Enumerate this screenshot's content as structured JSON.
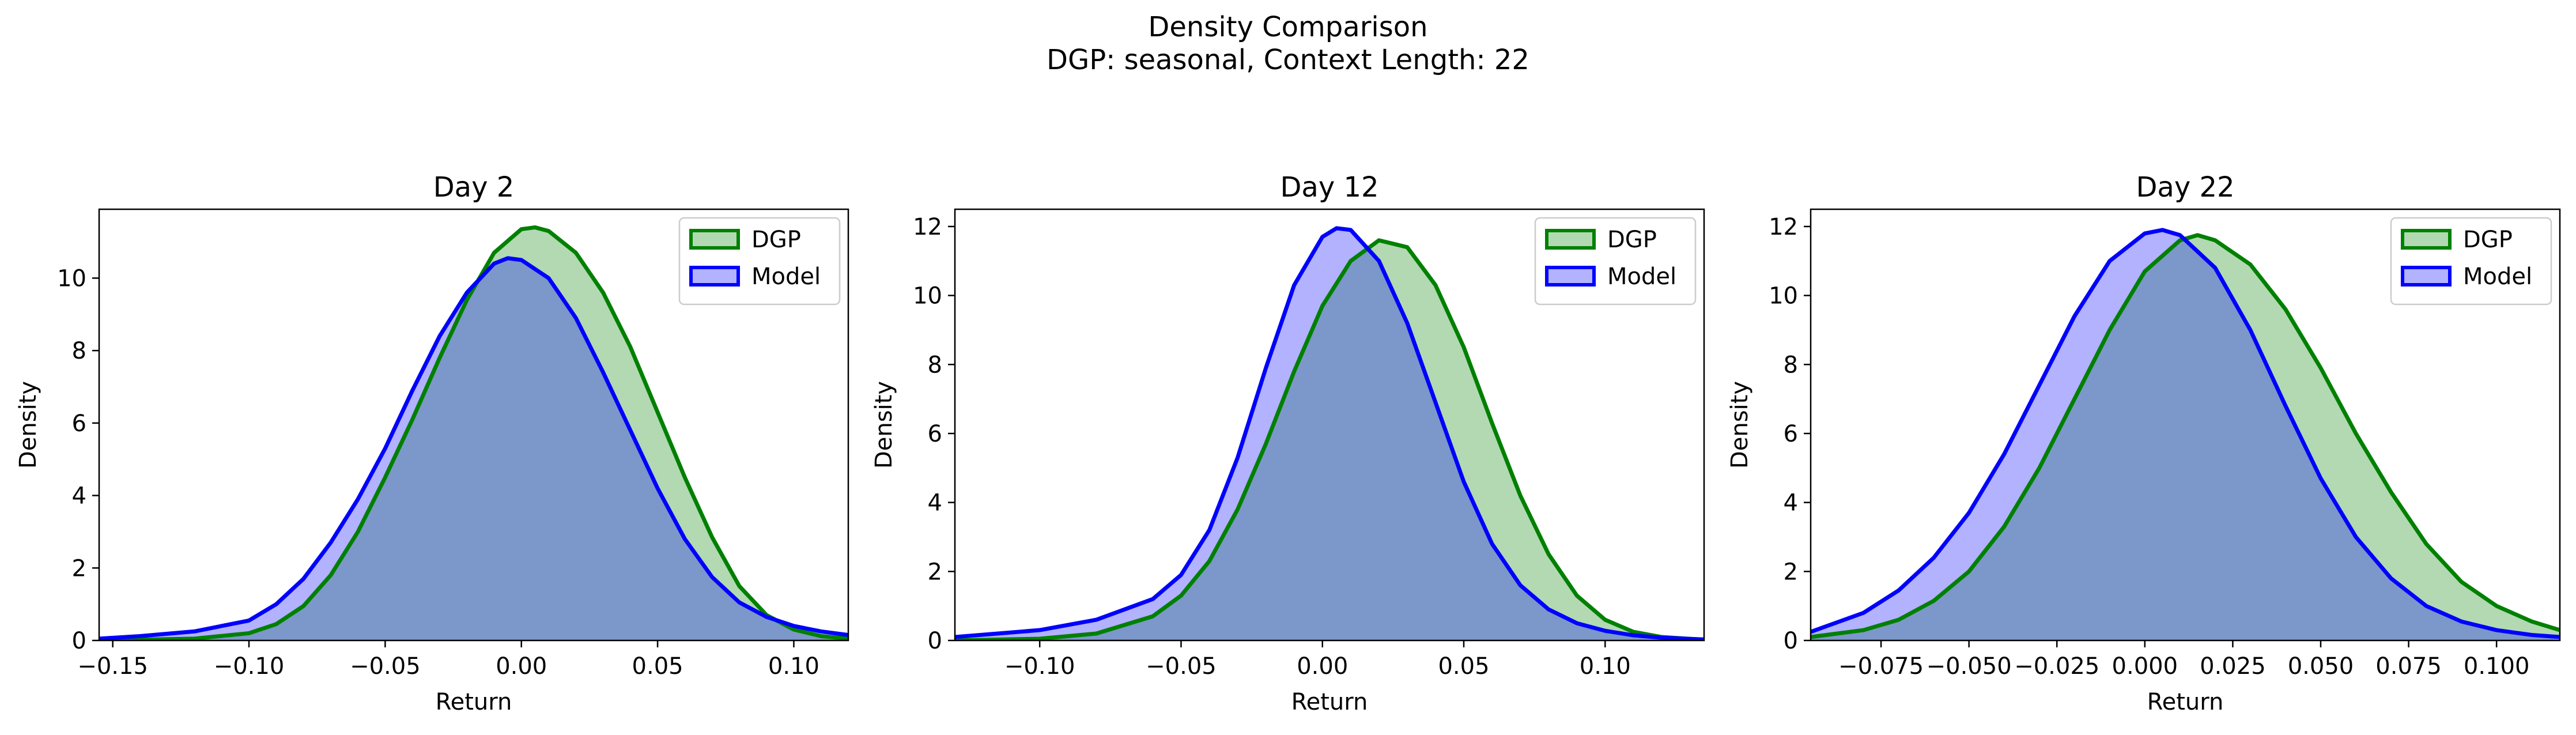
{
  "figure": {
    "title_line1": "Density Comparison",
    "title_line2": "DGP: seasonal, Context Length: 22"
  },
  "colors": {
    "dgp_line": "#008000",
    "dgp_fill": "#008000",
    "model_line": "#0000ff",
    "model_fill": "#0000ff"
  },
  "chart_data": [
    {
      "type": "area",
      "title": "Day 2",
      "xlabel": "Return",
      "ylabel": "Density",
      "xlim": [
        -0.155,
        0.12
      ],
      "ylim": [
        0,
        11.9
      ],
      "xticks": [
        -0.15,
        -0.1,
        -0.05,
        0.0,
        0.05,
        0.1
      ],
      "xtick_labels": [
        "−0.15",
        "−0.10",
        "−0.05",
        "0.00",
        "0.05",
        "0.10"
      ],
      "yticks": [
        0,
        2,
        4,
        6,
        8,
        10
      ],
      "ytick_labels": [
        "0",
        "2",
        "4",
        "6",
        "8",
        "10"
      ],
      "legend": "top-right",
      "series": [
        {
          "name": "DGP",
          "x": [
            -0.155,
            -0.14,
            -0.12,
            -0.1,
            -0.09,
            -0.08,
            -0.07,
            -0.06,
            -0.05,
            -0.04,
            -0.03,
            -0.02,
            -0.01,
            0.0,
            0.005,
            0.01,
            0.02,
            0.03,
            0.04,
            0.05,
            0.06,
            0.07,
            0.08,
            0.09,
            0.1,
            0.11,
            0.12
          ],
          "y": [
            0.0,
            0.02,
            0.05,
            0.2,
            0.45,
            0.95,
            1.8,
            3.0,
            4.5,
            6.1,
            7.8,
            9.4,
            10.7,
            11.35,
            11.4,
            11.3,
            10.7,
            9.6,
            8.1,
            6.3,
            4.5,
            2.85,
            1.5,
            0.7,
            0.3,
            0.12,
            0.05
          ]
        },
        {
          "name": "Model",
          "x": [
            -0.155,
            -0.14,
            -0.12,
            -0.1,
            -0.09,
            -0.08,
            -0.07,
            -0.06,
            -0.05,
            -0.04,
            -0.03,
            -0.02,
            -0.01,
            -0.005,
            0.0,
            0.01,
            0.02,
            0.03,
            0.04,
            0.05,
            0.06,
            0.07,
            0.08,
            0.09,
            0.1,
            0.11,
            0.12
          ],
          "y": [
            0.05,
            0.12,
            0.25,
            0.55,
            1.0,
            1.7,
            2.7,
            3.9,
            5.3,
            6.9,
            8.4,
            9.6,
            10.4,
            10.55,
            10.5,
            10.0,
            8.9,
            7.4,
            5.8,
            4.2,
            2.8,
            1.75,
            1.05,
            0.65,
            0.4,
            0.25,
            0.15
          ]
        }
      ]
    },
    {
      "type": "area",
      "title": "Day 12",
      "xlabel": "Return",
      "ylabel": "Density",
      "xlim": [
        -0.13,
        0.135
      ],
      "ylim": [
        0,
        12.5
      ],
      "xticks": [
        -0.1,
        -0.05,
        0.0,
        0.05,
        0.1
      ],
      "xtick_labels": [
        "−0.10",
        "−0.05",
        "0.00",
        "0.05",
        "0.10"
      ],
      "yticks": [
        0,
        2,
        4,
        6,
        8,
        10,
        12
      ],
      "ytick_labels": [
        "0",
        "2",
        "4",
        "6",
        "8",
        "10",
        "12"
      ],
      "legend": "top-right",
      "series": [
        {
          "name": "DGP",
          "x": [
            -0.13,
            -0.1,
            -0.08,
            -0.06,
            -0.05,
            -0.04,
            -0.03,
            -0.02,
            -0.01,
            0.0,
            0.01,
            0.02,
            0.03,
            0.04,
            0.05,
            0.06,
            0.07,
            0.08,
            0.09,
            0.1,
            0.11,
            0.12,
            0.135
          ],
          "y": [
            0.0,
            0.05,
            0.2,
            0.7,
            1.3,
            2.3,
            3.8,
            5.7,
            7.8,
            9.7,
            11.0,
            11.6,
            11.4,
            10.3,
            8.5,
            6.3,
            4.2,
            2.5,
            1.3,
            0.6,
            0.25,
            0.1,
            0.02
          ]
        },
        {
          "name": "Model",
          "x": [
            -0.13,
            -0.1,
            -0.08,
            -0.06,
            -0.05,
            -0.04,
            -0.03,
            -0.02,
            -0.01,
            0.0,
            0.005,
            0.01,
            0.02,
            0.03,
            0.04,
            0.05,
            0.06,
            0.07,
            0.08,
            0.09,
            0.1,
            0.11,
            0.12,
            0.135
          ],
          "y": [
            0.1,
            0.3,
            0.6,
            1.2,
            1.9,
            3.2,
            5.3,
            7.9,
            10.3,
            11.7,
            11.95,
            11.9,
            11.0,
            9.2,
            6.9,
            4.6,
            2.8,
            1.6,
            0.9,
            0.5,
            0.28,
            0.15,
            0.08,
            0.03
          ]
        }
      ]
    },
    {
      "type": "area",
      "title": "Day 22",
      "xlabel": "Return",
      "ylabel": "Density",
      "xlim": [
        -0.095,
        0.118
      ],
      "ylim": [
        0,
        12.5
      ],
      "xticks": [
        -0.075,
        -0.05,
        -0.025,
        0.0,
        0.025,
        0.05,
        0.075,
        0.1
      ],
      "xtick_labels": [
        "−0.075",
        "−0.050",
        "−0.025",
        "0.000",
        "0.025",
        "0.050",
        "0.075",
        "0.100"
      ],
      "yticks": [
        0,
        2,
        4,
        6,
        8,
        10,
        12
      ],
      "ytick_labels": [
        "0",
        "2",
        "4",
        "6",
        "8",
        "10",
        "12"
      ],
      "legend": "top-right",
      "series": [
        {
          "name": "DGP",
          "x": [
            -0.095,
            -0.08,
            -0.07,
            -0.06,
            -0.05,
            -0.04,
            -0.03,
            -0.02,
            -0.01,
            0.0,
            0.01,
            0.015,
            0.02,
            0.03,
            0.04,
            0.05,
            0.06,
            0.07,
            0.08,
            0.09,
            0.1,
            0.11,
            0.118
          ],
          "y": [
            0.1,
            0.3,
            0.6,
            1.15,
            2.0,
            3.3,
            5.0,
            7.0,
            9.0,
            10.7,
            11.6,
            11.75,
            11.6,
            10.9,
            9.6,
            7.9,
            6.0,
            4.3,
            2.8,
            1.7,
            1.0,
            0.55,
            0.3
          ]
        },
        {
          "name": "Model",
          "x": [
            -0.095,
            -0.08,
            -0.07,
            -0.06,
            -0.05,
            -0.04,
            -0.03,
            -0.02,
            -0.01,
            0.0,
            0.005,
            0.01,
            0.02,
            0.03,
            0.04,
            0.05,
            0.06,
            0.07,
            0.08,
            0.09,
            0.1,
            0.11,
            0.118
          ],
          "y": [
            0.25,
            0.8,
            1.45,
            2.4,
            3.7,
            5.4,
            7.4,
            9.4,
            11.0,
            11.8,
            11.9,
            11.75,
            10.8,
            9.0,
            6.8,
            4.7,
            3.0,
            1.8,
            1.0,
            0.55,
            0.3,
            0.16,
            0.1
          ]
        }
      ]
    }
  ]
}
